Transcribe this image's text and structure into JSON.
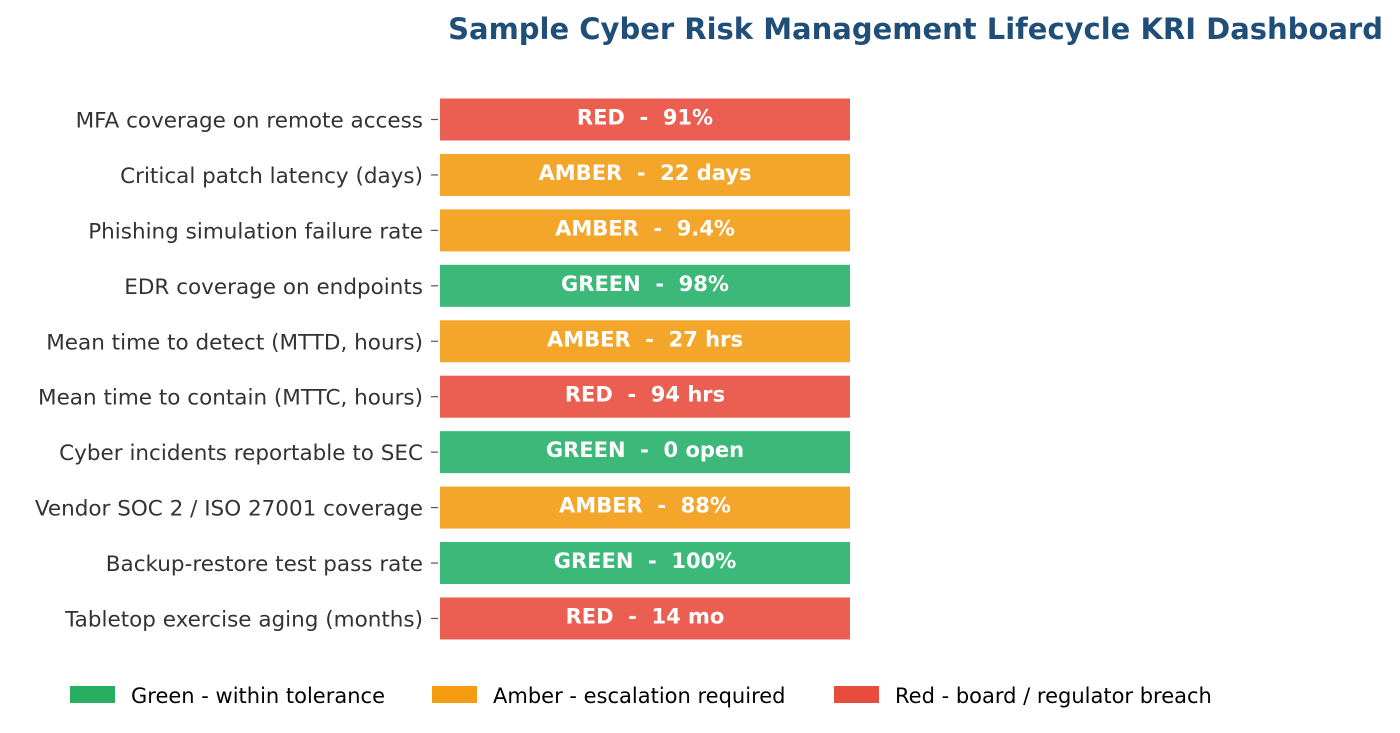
{
  "chart_data": {
    "type": "table",
    "title": "Sample Cyber Risk Management Lifecycle KRI Dashboard",
    "rows": [
      {
        "label": "MFA coverage on remote access",
        "status": "red",
        "bar_text": "RED  -  91%"
      },
      {
        "label": "Critical patch latency (days)",
        "status": "amber",
        "bar_text": "AMBER  -  22 days"
      },
      {
        "label": "Phishing simulation failure rate",
        "status": "amber",
        "bar_text": "AMBER  -  9.4%"
      },
      {
        "label": "EDR coverage on endpoints",
        "status": "green",
        "bar_text": "GREEN  -  98%"
      },
      {
        "label": "Mean time to detect (MTTD, hours)",
        "status": "amber",
        "bar_text": "AMBER  -  27 hrs"
      },
      {
        "label": "Mean time to contain (MTTC, hours)",
        "status": "red",
        "bar_text": "RED  -  94 hrs"
      },
      {
        "label": "Cyber incidents reportable to SEC",
        "status": "green",
        "bar_text": "GREEN  -  0 open"
      },
      {
        "label": "Vendor SOC 2 / ISO 27001 coverage",
        "status": "amber",
        "bar_text": "AMBER  -  88%"
      },
      {
        "label": "Backup-restore test pass rate",
        "status": "green",
        "bar_text": "GREEN  -  100%"
      },
      {
        "label": "Tabletop exercise aging (months)",
        "status": "red",
        "bar_text": "RED  -  14 mo"
      }
    ],
    "legend": [
      {
        "status": "green",
        "label": "Green - within tolerance"
      },
      {
        "status": "amber",
        "label": "Amber - escalation required"
      },
      {
        "status": "red",
        "label": "Red - board / regulator breach"
      }
    ],
    "legend_placement": "bottom",
    "grid": false
  },
  "colors": {
    "title": "#1f4e79",
    "label_text": "#333333",
    "bar_text": "#ffffff",
    "tick": "#555555",
    "legend_text": "#000000",
    "bar_fill": {
      "green": "#3cb878",
      "amber": "#f4a62a",
      "red": "#eb5e52"
    },
    "legend_fill": {
      "green": "#27ae60",
      "amber": "#f39c12",
      "red": "#e74c3c"
    }
  }
}
